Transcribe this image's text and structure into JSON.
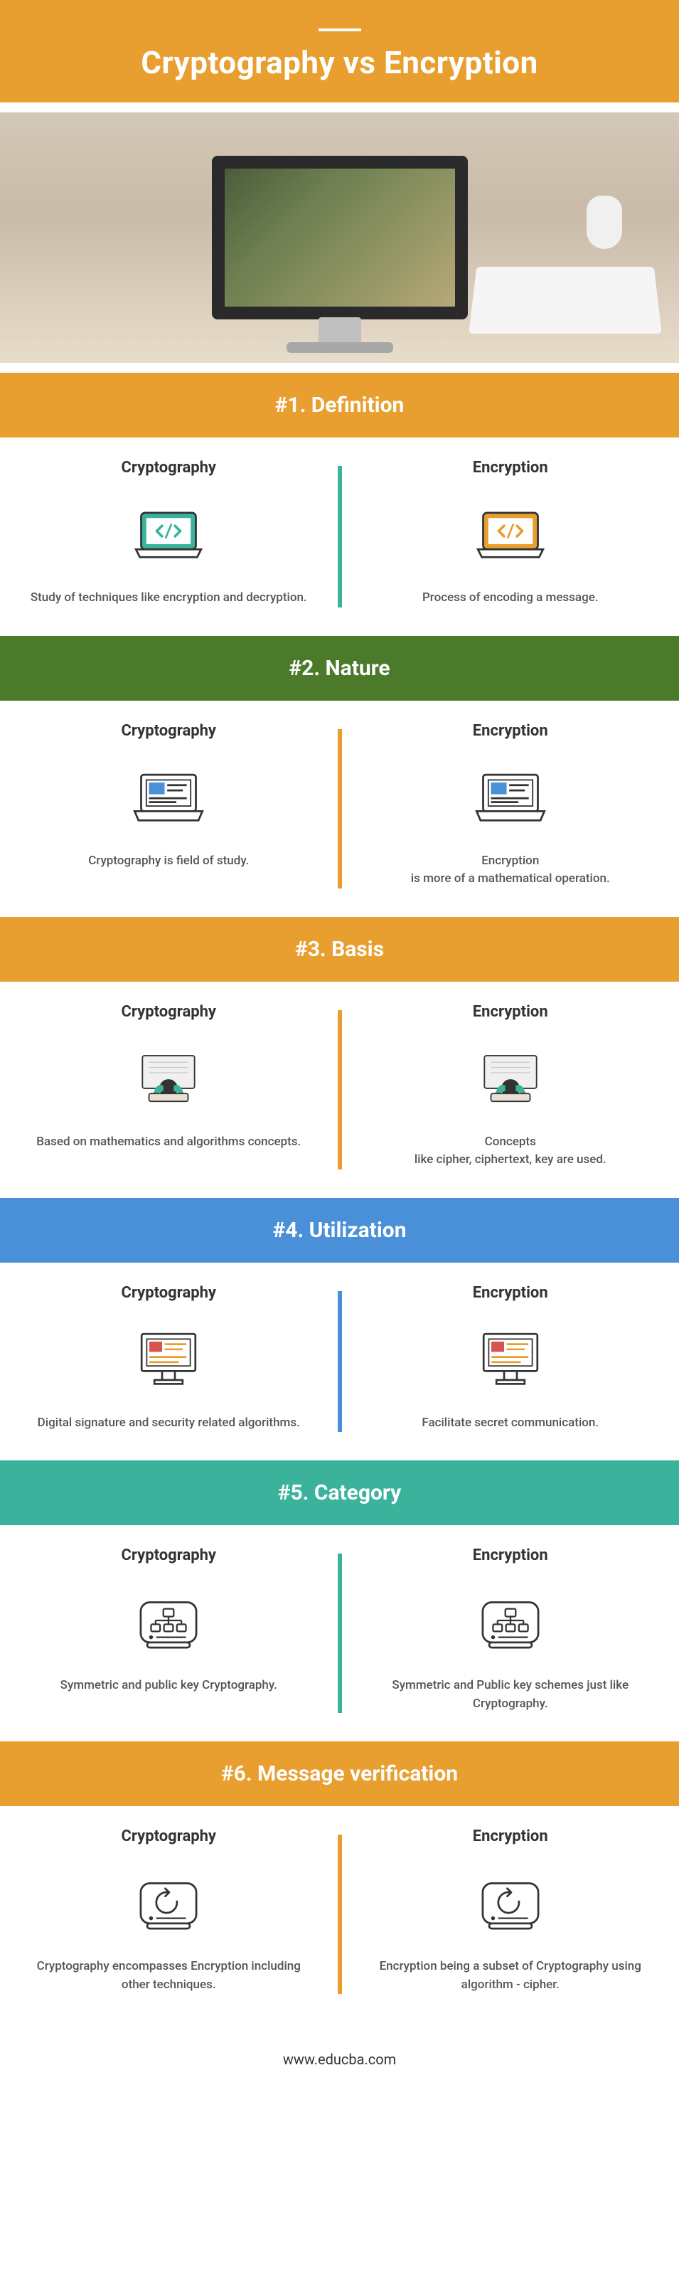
{
  "header": {
    "title": "Cryptography vs Encryption",
    "bg_color": "#e89f2f"
  },
  "labels": {
    "left": "Cryptography",
    "right": "Encryption"
  },
  "sections": [
    {
      "title": "#1. Definition",
      "header_bg": "#e89f2f",
      "divider_color": "#3bb39c",
      "icon": "laptop-code",
      "left_icon_accent": "#3bb39c",
      "right_icon_accent": "#e89f2f",
      "left_text": "Study of techniques like encryption and decryption.",
      "right_text": "Process of encoding a message."
    },
    {
      "title": "#2. Nature",
      "header_bg": "#4a7a2a",
      "divider_color": "#e89f2f",
      "icon": "laptop-window",
      "left_icon_accent": "#4a90d9",
      "right_icon_accent": "#4a90d9",
      "left_text": "Cryptography is field of study.",
      "right_text": "Encryption\nis more of a mathematical operation."
    },
    {
      "title": "#3. Basis",
      "header_bg": "#e89f2f",
      "divider_color": "#e89f2f",
      "icon": "person-desk",
      "left_icon_accent": "#3bb39c",
      "right_icon_accent": "#3bb39c",
      "left_text": "Based on mathematics and algorithms concepts.",
      "right_text": "Concepts\nlike cipher, ciphertext, key are used."
    },
    {
      "title": "#4. Utilization",
      "header_bg": "#4a90d9",
      "divider_color": "#4a90d9",
      "icon": "desktop-app",
      "left_icon_accent": "#d9534f",
      "right_icon_accent": "#d9534f",
      "left_text": "Digital signature and security related algorithms.",
      "right_text": "Facilitate secret communication."
    },
    {
      "title": "#5. Category",
      "header_bg": "#3bb39c",
      "divider_color": "#3bb39c",
      "icon": "drive-tree",
      "left_icon_accent": "#333333",
      "right_icon_accent": "#333333",
      "left_text": "Symmetric and public key Cryptography.",
      "right_text": "Symmetric and Public key schemes just like Cryptography."
    },
    {
      "title": "#6. Message verification",
      "header_bg": "#e89f2f",
      "divider_color": "#e89f2f",
      "icon": "drive-refresh",
      "left_icon_accent": "#333333",
      "right_icon_accent": "#333333",
      "left_text": "Cryptography encompasses Encryption including other techniques.",
      "right_text": "Encryption being a subset of Cryptography using algorithm - cipher."
    }
  ],
  "footer": {
    "text": "www.educba.com"
  }
}
